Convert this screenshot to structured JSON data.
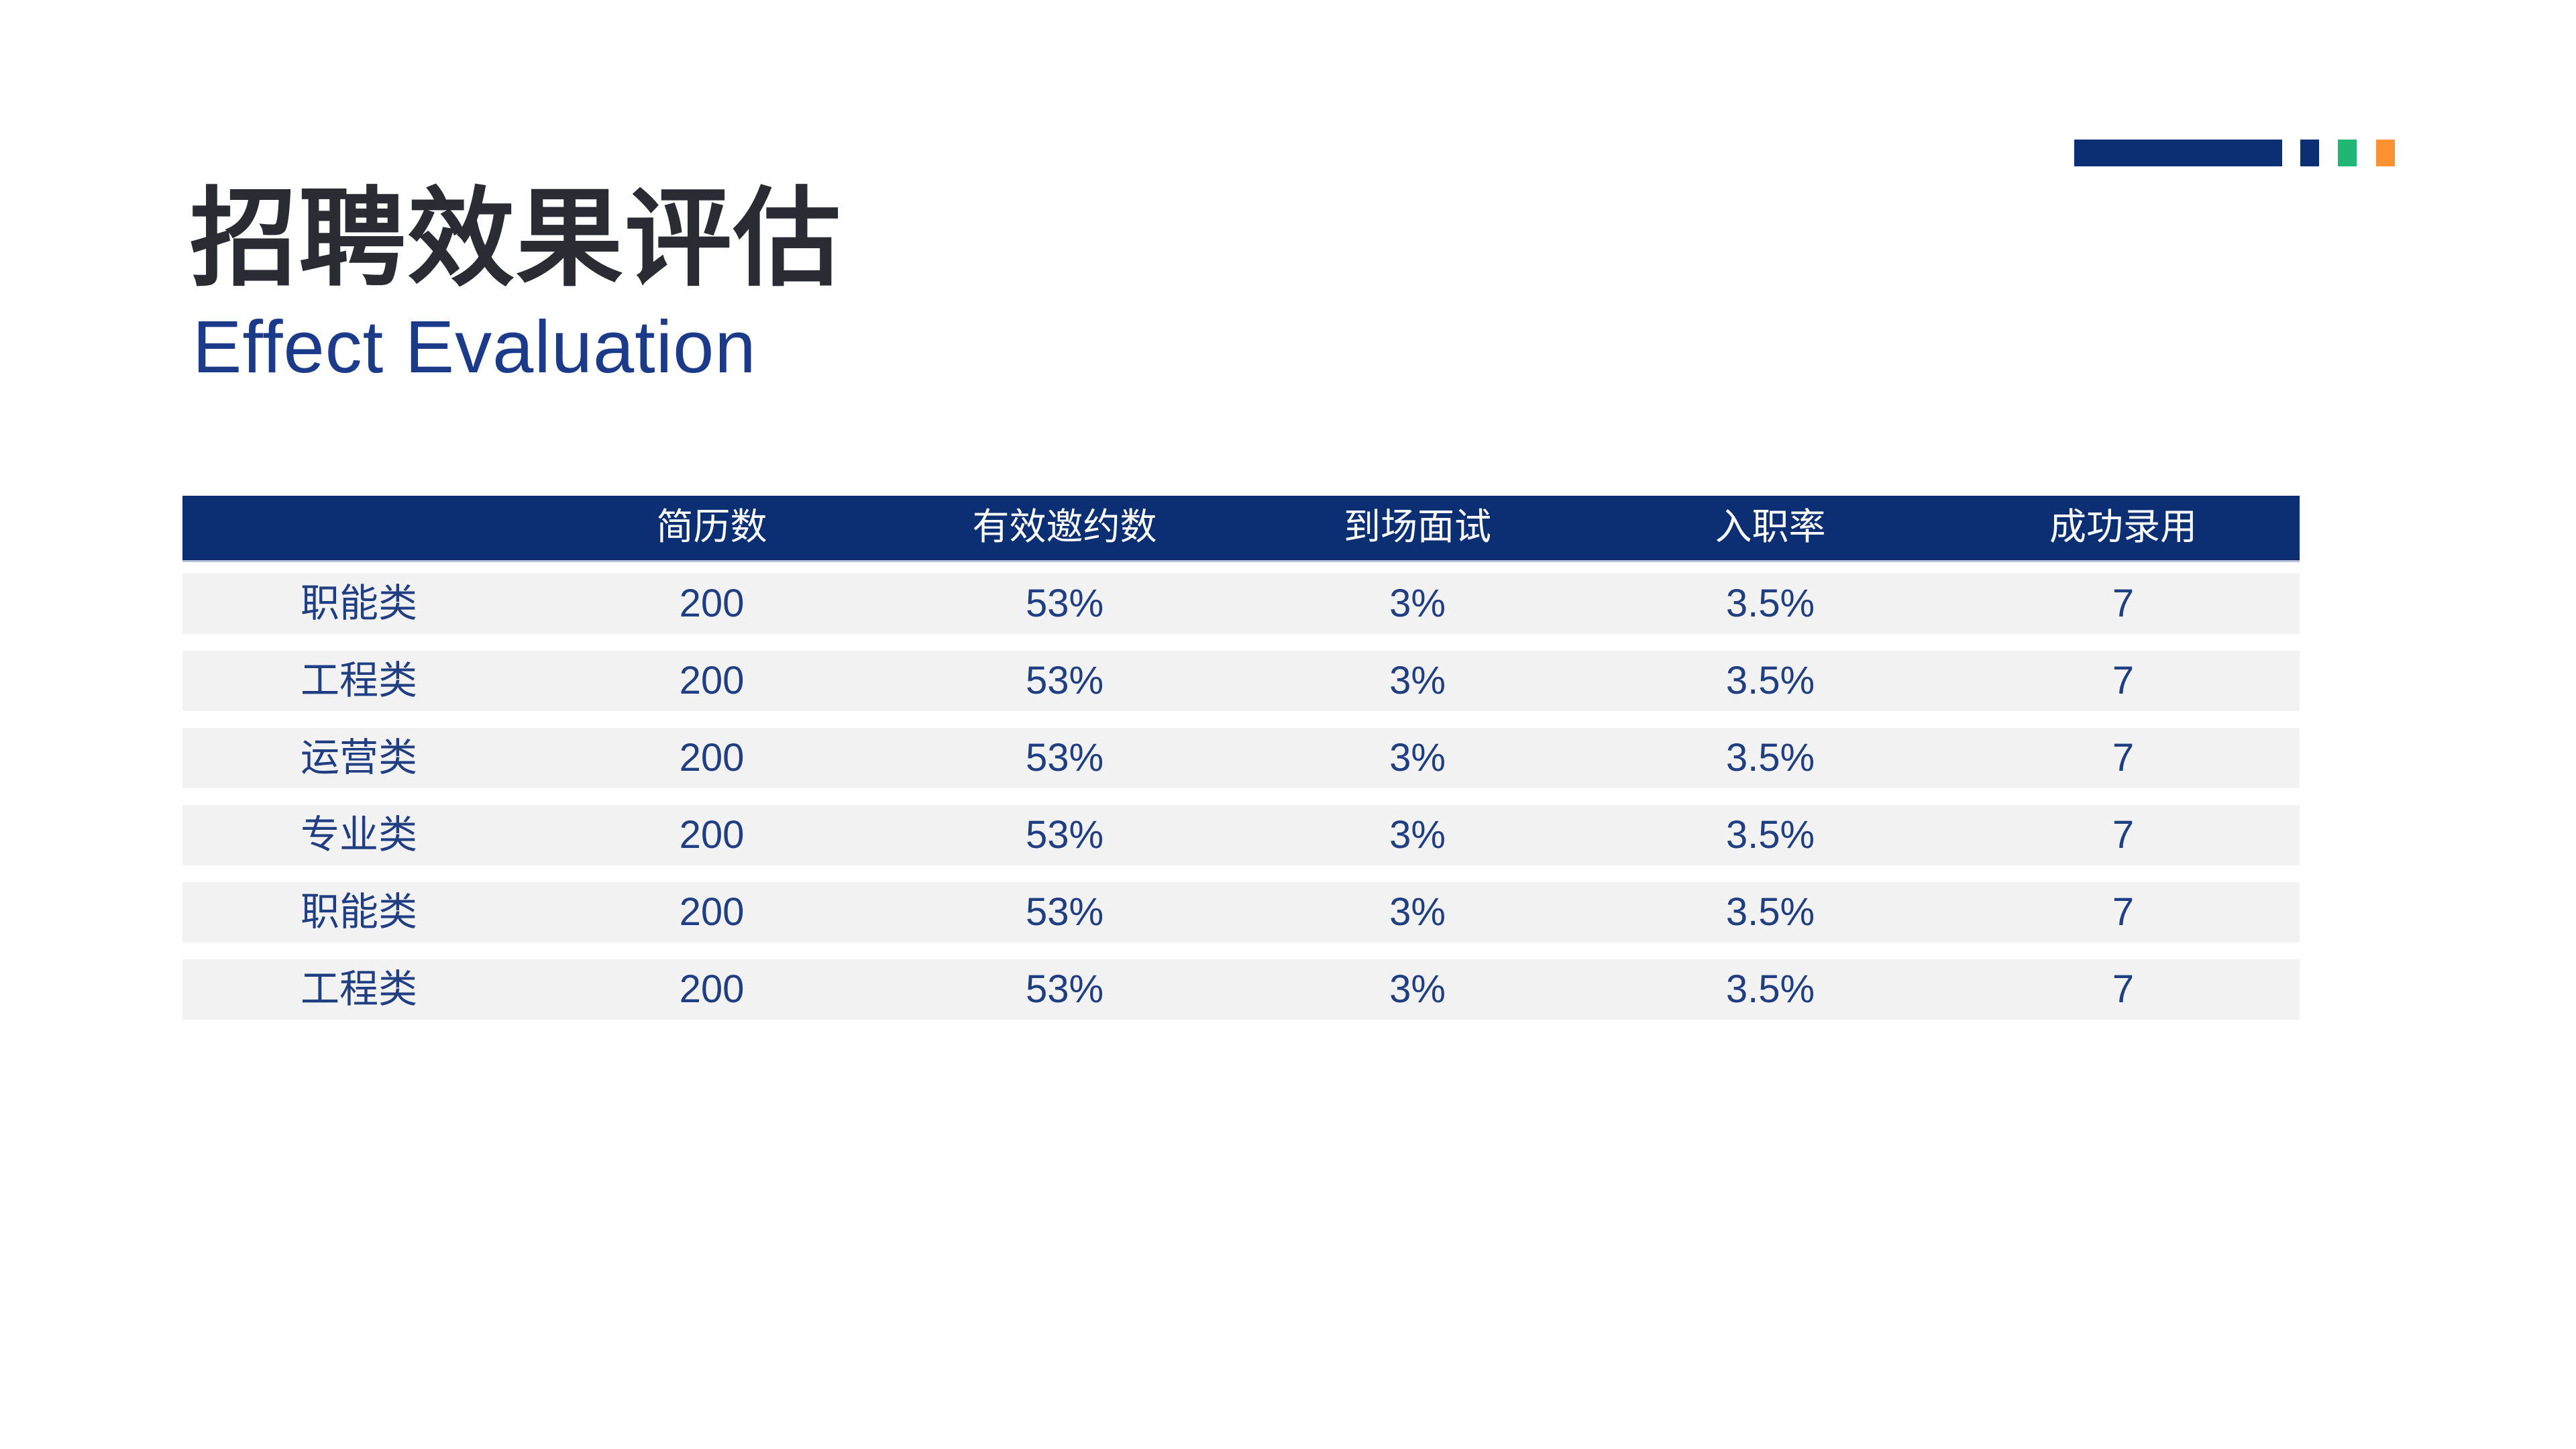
{
  "slide": {
    "title": "招聘效果评估",
    "subtitle": "Effect Evaluation"
  },
  "decoration": {
    "long_bar_color": "#0C2F74",
    "squares": [
      {
        "name": "navy-square",
        "color": "#0C2F74"
      },
      {
        "name": "green-square",
        "color": "#20B673"
      },
      {
        "name": "orange-square",
        "color": "#FC9132"
      }
    ]
  },
  "colors": {
    "header_bg": "#0C2F74",
    "header_text": "#FFFFFF",
    "row_bg": "#F2F2F2",
    "body_text": "#203E82",
    "title_text": "#2B2B33",
    "subtitle_text": "#1B3A8A",
    "header_underline": "#B6C0DC",
    "background": "#FFFFFF"
  },
  "table": {
    "type": "table",
    "columns": [
      "",
      "简历数",
      "有效邀约数",
      "到场面试",
      "入职率",
      "成功录用"
    ],
    "rows": [
      {
        "label": "职能类",
        "values": [
          "200",
          "53%",
          "3%",
          "3.5%",
          "7"
        ]
      },
      {
        "label": "工程类",
        "values": [
          "200",
          "53%",
          "3%",
          "3.5%",
          "7"
        ]
      },
      {
        "label": "运营类",
        "values": [
          "200",
          "53%",
          "3%",
          "3.5%",
          "7"
        ]
      },
      {
        "label": "专业类",
        "values": [
          "200",
          "53%",
          "3%",
          "3.5%",
          "7"
        ]
      },
      {
        "label": "职能类",
        "values": [
          "200",
          "53%",
          "3%",
          "3.5%",
          "7"
        ]
      },
      {
        "label": "工程类",
        "values": [
          "200",
          "53%",
          "3%",
          "3.5%",
          "7"
        ]
      }
    ]
  }
}
